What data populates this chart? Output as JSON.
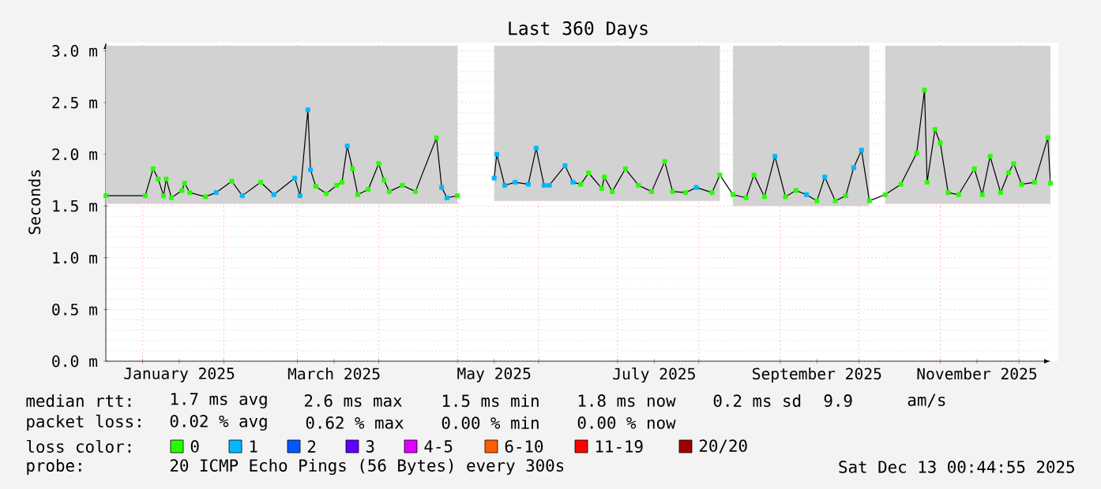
{
  "chart_data": {
    "type": "line",
    "title": "Last 360 Days",
    "ylabel": "Seconds",
    "legend_title": "loss color:",
    "legend": "bottom",
    "grid": true,
    "marker": "square",
    "xlim": [
      "2024-12-18",
      "2025-12-13"
    ],
    "xticks": [
      {
        "value": "2025-01-01",
        "label": null
      },
      {
        "value": "2025-01-15",
        "label": "January 2025"
      },
      {
        "value": "2025-02-01",
        "label": null
      },
      {
        "value": "2025-03-01",
        "label": null
      },
      {
        "value": "2025-03-15",
        "label": "March 2025"
      },
      {
        "value": "2025-04-01",
        "label": null
      },
      {
        "value": "2025-05-01",
        "label": null
      },
      {
        "value": "2025-05-15",
        "label": "May 2025"
      },
      {
        "value": "2025-06-01",
        "label": null
      },
      {
        "value": "2025-07-01",
        "label": null
      },
      {
        "value": "2025-07-15",
        "label": "July 2025"
      },
      {
        "value": "2025-08-01",
        "label": null
      },
      {
        "value": "2025-09-01",
        "label": null
      },
      {
        "value": "2025-09-15",
        "label": "September 2025"
      },
      {
        "value": "2025-10-01",
        "label": null
      },
      {
        "value": "2025-11-01",
        "label": null
      },
      {
        "value": "2025-11-15",
        "label": "November 2025"
      },
      {
        "value": "2025-12-01",
        "label": null
      }
    ],
    "ylim": [
      0,
      3.08
    ],
    "yticks": [
      {
        "value": 0,
        "label": "0.0 m"
      },
      {
        "value": 0.5,
        "label": "0.5 m"
      },
      {
        "value": 1.0,
        "label": "1.0 m"
      },
      {
        "value": 1.5,
        "label": "1.5 m"
      },
      {
        "value": 2.0,
        "label": "2.0 m"
      },
      {
        "value": 2.5,
        "label": "2.5 m"
      },
      {
        "value": 3.0,
        "label": "3.0 m"
      }
    ],
    "x": [
      "2024-12-18",
      "2025-01-02",
      "2025-01-05",
      "2025-01-07",
      "2025-01-09",
      "2025-01-10",
      "2025-01-12",
      "2025-01-16",
      "2025-01-17",
      "2025-01-19",
      "2025-01-25",
      "2025-01-29",
      "2025-02-04",
      "2025-02-08",
      "2025-02-15",
      "2025-02-20",
      "2025-02-28",
      "2025-03-02",
      "2025-03-05",
      "2025-03-06",
      "2025-03-08",
      "2025-03-12",
      "2025-03-16",
      "2025-03-18",
      "2025-03-20",
      "2025-03-22",
      "2025-03-24",
      "2025-03-28",
      "2025-04-01",
      "2025-04-03",
      "2025-04-05",
      "2025-04-10",
      "2025-04-15",
      "2025-04-23",
      "2025-04-25",
      "2025-04-27",
      "2025-05-01",
      "2025-05-07",
      "2025-05-15",
      "2025-05-16",
      "2025-05-19",
      "2025-05-23",
      "2025-05-28",
      "2025-05-31",
      "2025-06-03",
      "2025-06-05",
      "2025-06-11",
      "2025-06-14",
      "2025-06-17",
      "2025-06-20",
      "2025-06-25",
      "2025-06-26",
      "2025-06-29",
      "2025-07-04",
      "2025-07-09",
      "2025-07-14",
      "2025-07-19",
      "2025-07-22",
      "2025-07-27",
      "2025-07-31",
      "2025-08-06",
      "2025-08-09",
      "2025-08-14",
      "2025-08-19",
      "2025-08-22",
      "2025-08-26",
      "2025-08-30",
      "2025-09-03",
      "2025-09-07",
      "2025-09-11",
      "2025-09-15",
      "2025-09-18",
      "2025-09-22",
      "2025-09-26",
      "2025-09-29",
      "2025-10-02",
      "2025-10-05",
      "2025-10-11",
      "2025-10-17",
      "2025-10-23",
      "2025-10-26",
      "2025-10-27",
      "2025-10-30",
      "2025-11-01",
      "2025-11-04",
      "2025-11-08",
      "2025-11-14",
      "2025-11-17",
      "2025-11-20",
      "2025-11-24",
      "2025-11-27",
      "2025-11-29",
      "2025-12-02",
      "2025-12-07",
      "2025-12-12",
      "2025-12-13"
    ],
    "series": [
      {
        "color": "#000000",
        "marker": "none",
        "values": [
          1.6,
          1.6,
          1.86,
          1.76,
          1.6,
          1.76,
          1.58,
          1.65,
          1.72,
          1.63,
          1.59,
          1.63,
          1.74,
          1.6,
          1.73,
          1.61,
          1.77,
          1.6,
          2.43,
          1.85,
          1.69,
          1.62,
          1.7,
          1.73,
          2.08,
          1.86,
          1.61,
          1.66,
          1.91,
          1.75,
          1.64,
          1.7,
          1.64,
          2.16,
          1.68,
          1.58,
          1.6,
          null,
          1.77,
          2.0,
          1.7,
          1.73,
          1.71,
          2.06,
          1.7,
          1.7,
          1.89,
          1.73,
          1.71,
          1.82,
          1.67,
          1.78,
          1.64,
          1.86,
          1.7,
          1.64,
          1.93,
          1.64,
          1.63,
          1.68,
          1.63,
          1.8,
          1.61,
          1.58,
          1.8,
          1.59,
          1.98,
          1.59,
          1.65,
          1.61,
          1.55,
          1.78,
          1.55,
          1.6,
          1.87,
          2.04,
          1.55,
          1.61,
          1.71,
          2.01,
          2.62,
          1.73,
          2.24,
          2.11,
          1.63,
          1.61,
          1.86,
          1.61,
          1.98,
          1.63,
          1.82,
          1.91,
          1.71,
          1.73,
          2.16,
          1.72
        ],
        "lower": [
          1.52,
          1.52,
          1.52,
          1.52,
          1.52,
          1.52,
          1.52,
          1.52,
          1.52,
          1.52,
          1.52,
          1.52,
          1.52,
          1.52,
          1.52,
          1.52,
          1.52,
          1.52,
          1.52,
          1.52,
          1.52,
          1.52,
          1.52,
          1.52,
          1.52,
          1.52,
          1.52,
          1.52,
          1.52,
          1.52,
          1.52,
          1.52,
          1.52,
          1.52,
          1.52,
          1.52,
          1.52,
          null,
          1.55,
          1.55,
          1.55,
          1.55,
          1.55,
          1.55,
          1.55,
          1.55,
          1.55,
          1.55,
          1.55,
          1.55,
          1.55,
          1.55,
          1.55,
          1.55,
          1.55,
          1.55,
          1.55,
          1.55,
          1.55,
          1.55,
          1.55,
          1.55,
          1.5,
          1.5,
          1.5,
          1.5,
          1.5,
          1.5,
          1.5,
          1.5,
          1.5,
          1.5,
          1.5,
          1.5,
          1.5,
          1.5,
          1.5,
          1.52,
          1.52,
          1.52,
          1.52,
          1.52,
          1.52,
          1.52,
          1.52,
          1.52,
          1.52,
          1.52,
          1.52,
          1.52,
          1.52,
          1.52,
          1.52,
          1.52,
          1.52,
          1.52
        ],
        "upper": [
          3.05,
          3.05,
          3.05,
          3.05,
          3.05,
          3.05,
          3.05,
          3.05,
          3.05,
          3.05,
          3.05,
          3.05,
          3.05,
          3.05,
          3.05,
          3.05,
          3.05,
          3.05,
          3.05,
          3.05,
          3.05,
          3.05,
          3.05,
          3.05,
          3.05,
          3.05,
          3.05,
          3.05,
          3.05,
          3.05,
          3.05,
          3.05,
          3.05,
          3.05,
          3.05,
          3.05,
          3.05,
          null,
          3.05,
          3.05,
          3.05,
          3.05,
          3.05,
          3.05,
          3.05,
          3.05,
          3.05,
          3.05,
          3.05,
          3.05,
          3.05,
          3.05,
          3.05,
          3.05,
          3.05,
          3.05,
          3.05,
          3.05,
          3.05,
          3.05,
          3.05,
          3.05,
          3.05,
          3.05,
          3.05,
          3.05,
          3.05,
          3.05,
          3.05,
          3.05,
          3.05,
          3.05,
          3.05,
          3.05,
          3.05,
          3.05,
          3.05,
          3.05,
          3.05,
          3.05,
          3.05,
          3.05,
          3.05,
          3.05,
          3.05,
          3.05,
          3.05,
          3.05,
          3.05,
          3.05,
          3.05,
          3.05,
          3.05,
          3.05,
          3.05,
          3.05
        ]
      },
      {
        "type": "scatter",
        "name": "0",
        "color": "#26ff00",
        "x": [
          "2024-12-18",
          "2025-01-02",
          "2025-01-05",
          "2025-01-07",
          "2025-01-09",
          "2025-01-10",
          "2025-01-12",
          "2025-01-16",
          "2025-01-17",
          "2025-01-19",
          "2025-01-25",
          "2025-02-04",
          "2025-02-15",
          "2025-03-08",
          "2025-03-12",
          "2025-03-16",
          "2025-03-18",
          "2025-03-22",
          "2025-03-24",
          "2025-03-28",
          "2025-04-01",
          "2025-04-03",
          "2025-04-05",
          "2025-04-10",
          "2025-04-15",
          "2025-04-23",
          "2025-05-01",
          "2025-06-17",
          "2025-06-20",
          "2025-06-25",
          "2025-06-26",
          "2025-06-29",
          "2025-07-04",
          "2025-07-09",
          "2025-07-14",
          "2025-07-19",
          "2025-07-22",
          "2025-07-27",
          "2025-08-06",
          "2025-08-09",
          "2025-08-14",
          "2025-08-19",
          "2025-08-22",
          "2025-08-26",
          "2025-09-03",
          "2025-09-07",
          "2025-09-15",
          "2025-09-22",
          "2025-09-26",
          "2025-10-05",
          "2025-10-11",
          "2025-10-17",
          "2025-10-23",
          "2025-10-26",
          "2025-10-27",
          "2025-10-30",
          "2025-11-01",
          "2025-11-04",
          "2025-11-08",
          "2025-11-14",
          "2025-11-17",
          "2025-11-20",
          "2025-11-24",
          "2025-11-27",
          "2025-11-29",
          "2025-12-02",
          "2025-12-07",
          "2025-12-12",
          "2025-12-13"
        ],
        "values": [
          1.6,
          1.6,
          1.86,
          1.76,
          1.6,
          1.76,
          1.58,
          1.65,
          1.72,
          1.63,
          1.59,
          1.74,
          1.73,
          1.69,
          1.62,
          1.7,
          1.73,
          1.86,
          1.61,
          1.66,
          1.91,
          1.75,
          1.64,
          1.7,
          1.64,
          2.16,
          1.6,
          1.71,
          1.82,
          1.67,
          1.78,
          1.64,
          1.86,
          1.7,
          1.64,
          1.93,
          1.64,
          1.63,
          1.63,
          1.8,
          1.61,
          1.58,
          1.8,
          1.59,
          1.59,
          1.65,
          1.55,
          1.55,
          1.6,
          1.55,
          1.61,
          1.71,
          2.01,
          2.62,
          1.73,
          2.24,
          2.11,
          1.63,
          1.61,
          1.86,
          1.61,
          1.98,
          1.63,
          1.82,
          1.91,
          1.71,
          1.73,
          2.16,
          1.72
        ]
      },
      {
        "type": "scatter",
        "name": "1",
        "color": "#00b8ff",
        "x": [
          "2025-01-29",
          "2025-02-08",
          "2025-02-20",
          "2025-02-28",
          "2025-03-02",
          "2025-03-05",
          "2025-03-06",
          "2025-03-20",
          "2025-04-25",
          "2025-04-27",
          "2025-05-15",
          "2025-05-16",
          "2025-05-19",
          "2025-05-23",
          "2025-05-28",
          "2025-05-31",
          "2025-06-03",
          "2025-06-05",
          "2025-06-11",
          "2025-06-14",
          "2025-07-31",
          "2025-08-30",
          "2025-09-11",
          "2025-09-18",
          "2025-09-29",
          "2025-10-02"
        ],
        "values": [
          1.63,
          1.6,
          1.61,
          1.77,
          1.6,
          2.43,
          1.85,
          2.08,
          1.68,
          1.58,
          1.77,
          2.0,
          1.7,
          1.73,
          1.71,
          2.06,
          1.7,
          1.7,
          1.89,
          1.73,
          1.68,
          1.98,
          1.61,
          1.78,
          1.87,
          2.04
        ]
      },
      {
        "type": "scatter",
        "name": "2",
        "color": "#0059ff",
        "values": [
          null,
          null,
          null,
          null,
          null,
          null,
          null,
          null,
          null,
          null,
          null,
          null,
          null,
          null,
          null,
          null,
          null,
          null,
          null,
          null,
          null,
          null,
          null,
          null,
          null,
          null,
          null,
          null,
          null,
          null,
          null,
          null,
          null,
          null,
          null,
          null,
          null,
          null,
          null,
          null,
          null,
          null,
          null,
          null,
          null,
          null,
          null,
          null,
          null,
          null,
          null,
          null,
          null,
          null,
          null,
          null,
          null,
          null,
          null,
          null,
          null,
          null,
          null,
          null,
          null,
          null,
          null,
          null,
          null,
          null,
          null,
          null,
          null,
          null,
          null,
          null,
          null,
          null,
          null,
          null,
          null,
          null,
          null,
          null,
          null,
          null,
          null,
          null,
          null,
          null,
          null,
          null,
          null,
          null,
          null,
          null
        ]
      },
      {
        "type": "scatter",
        "name": "3",
        "color": "#5e00ff",
        "values": [
          null,
          null,
          null,
          null,
          null,
          null,
          null,
          null,
          null,
          null,
          null,
          null,
          null,
          null,
          null,
          null,
          null,
          null,
          null,
          null,
          null,
          null,
          null,
          null,
          null,
          null,
          null,
          null,
          null,
          null,
          null,
          null,
          null,
          null,
          null,
          null,
          null,
          null,
          null,
          null,
          null,
          null,
          null,
          null,
          null,
          null,
          null,
          null,
          null,
          null,
          null,
          null,
          null,
          null,
          null,
          null,
          null,
          null,
          null,
          null,
          null,
          null,
          null,
          null,
          null,
          null,
          null,
          null,
          null,
          null,
          null,
          null,
          null,
          null,
          null,
          null,
          null,
          null,
          null,
          null,
          null,
          null,
          null,
          null,
          null,
          null,
          null,
          null,
          null,
          null,
          null,
          null,
          null,
          null,
          null,
          null
        ]
      },
      {
        "type": "scatter",
        "name": "4-5",
        "color": "#dd00ff",
        "values": [
          null,
          null,
          null,
          null,
          null,
          null,
          null,
          null,
          null,
          null,
          null,
          null,
          null,
          null,
          null,
          null,
          null,
          null,
          null,
          null,
          null,
          null,
          null,
          null,
          null,
          null,
          null,
          null,
          null,
          null,
          null,
          null,
          null,
          null,
          null,
          null,
          null,
          null,
          null,
          null,
          null,
          null,
          null,
          null,
          null,
          null,
          null,
          null,
          null,
          null,
          null,
          null,
          null,
          null,
          null,
          null,
          null,
          null,
          null,
          null,
          null,
          null,
          null,
          null,
          null,
          null,
          null,
          null,
          null,
          null,
          null,
          null,
          null,
          null,
          null,
          null,
          null,
          null,
          null,
          null,
          null,
          null,
          null,
          null,
          null,
          null,
          null,
          null,
          null,
          null,
          null,
          null,
          null,
          null,
          null,
          null
        ]
      },
      {
        "type": "scatter",
        "name": "6-10",
        "color": "#ff5e00",
        "values": [
          null,
          null,
          null,
          null,
          null,
          null,
          null,
          null,
          null,
          null,
          null,
          null,
          null,
          null,
          null,
          null,
          null,
          null,
          null,
          null,
          null,
          null,
          null,
          null,
          null,
          null,
          null,
          null,
          null,
          null,
          null,
          null,
          null,
          null,
          null,
          null,
          null,
          null,
          null,
          null,
          null,
          null,
          null,
          null,
          null,
          null,
          null,
          null,
          null,
          null,
          null,
          null,
          null,
          null,
          null,
          null,
          null,
          null,
          null,
          null,
          null,
          null,
          null,
          null,
          null,
          null,
          null,
          null,
          null,
          null,
          null,
          null,
          null,
          null,
          null,
          null,
          null,
          null,
          null,
          null,
          null,
          null,
          null,
          null,
          null,
          null,
          null,
          null,
          null,
          null,
          null,
          null,
          null,
          null,
          null,
          null
        ]
      },
      {
        "type": "scatter",
        "name": "11-19",
        "color": "#ff0000",
        "values": [
          null,
          null,
          null,
          null,
          null,
          null,
          null,
          null,
          null,
          null,
          null,
          null,
          null,
          null,
          null,
          null,
          null,
          null,
          null,
          null,
          null,
          null,
          null,
          null,
          null,
          null,
          null,
          null,
          null,
          null,
          null,
          null,
          null,
          null,
          null,
          null,
          null,
          null,
          null,
          null,
          null,
          null,
          null,
          null,
          null,
          null,
          null,
          null,
          null,
          null,
          null,
          null,
          null,
          null,
          null,
          null,
          null,
          null,
          null,
          null,
          null,
          null,
          null,
          null,
          null,
          null,
          null,
          null,
          null,
          null,
          null,
          null,
          null,
          null,
          null,
          null,
          null,
          null,
          null,
          null,
          null,
          null,
          null,
          null,
          null,
          null,
          null,
          null,
          null,
          null,
          null,
          null,
          null,
          null,
          null,
          null
        ]
      },
      {
        "type": "scatter",
        "name": "20/20",
        "color": "#a10000",
        "values": [
          null,
          null,
          null,
          null,
          null,
          null,
          null,
          null,
          null,
          null,
          null,
          null,
          null,
          null,
          null,
          null,
          null,
          null,
          null,
          null,
          null,
          null,
          null,
          null,
          null,
          null,
          null,
          null,
          null,
          null,
          null,
          null,
          null,
          null,
          null,
          null,
          null,
          null,
          null,
          null,
          null,
          null,
          null,
          null,
          null,
          null,
          null,
          null,
          null,
          null,
          null,
          null,
          null,
          null,
          null,
          null,
          null,
          null,
          null,
          null,
          null,
          null,
          null,
          null,
          null,
          null,
          null,
          null,
          null,
          null,
          null,
          null,
          null,
          null,
          null,
          null,
          null,
          null,
          null,
          null,
          null,
          null,
          null,
          null,
          null,
          null,
          null,
          null,
          null,
          null,
          null,
          null,
          null,
          null,
          null,
          null
        ]
      }
    ],
    "annotations": [
      "median rtt:",
      "1.7 ms avg",
      "2.6 ms max",
      "1.5 ms min",
      "1.8 ms now",
      "0.2 ms sd",
      "9.9",
      "am/s",
      "packet loss:",
      "0.02 % avg",
      "0.62 % max",
      "0.00 % min",
      "0.00 % now",
      "probe:",
      "20 ICMP Echo Pings (56 Bytes) every 300s",
      "Sat Dec 13 00:44:55 2025"
    ]
  }
}
